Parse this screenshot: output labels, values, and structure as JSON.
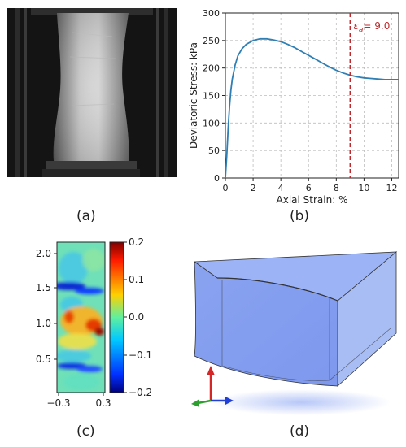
{
  "captions": {
    "a": "(a)",
    "b": "(b)",
    "c": "(c)",
    "d": "(d)"
  },
  "panel_b": {
    "annotation_var": "ε",
    "annotation_sub": "a",
    "annotation_value": "= 9.0",
    "vline_x": 9.0
  },
  "panel_c": {
    "colorbar_ticks": [
      "0.2",
      "0.1",
      "0.0",
      "−0.1",
      "−0.2"
    ]
  },
  "colors": {
    "curve": "#2f7fb5",
    "vline": "#c0282b",
    "grid": "#bdbdbd",
    "block": "#8aa6f2",
    "axis_up": "#d62728",
    "axis_x": "#1f3fd6",
    "axis_y": "#2ca02c"
  },
  "chart_data": [
    {
      "type": "line",
      "xlabel": "Axial Strain: %",
      "ylabel": "Deviatoric Stress: kPa",
      "xlim": [
        0,
        12.5
      ],
      "ylim": [
        0,
        300
      ],
      "xticks": [
        0,
        2,
        4,
        6,
        8,
        10,
        12
      ],
      "yticks": [
        0,
        50,
        100,
        150,
        200,
        250,
        300
      ],
      "grid": true,
      "x": [
        0.0,
        0.1,
        0.2,
        0.3,
        0.4,
        0.5,
        0.7,
        0.9,
        1.2,
        1.5,
        2.0,
        2.5,
        3.0,
        3.5,
        4.0,
        4.5,
        5.0,
        5.5,
        6.0,
        6.5,
        7.0,
        7.5,
        8.0,
        8.5,
        9.0,
        9.5,
        10.0,
        10.5,
        11.0,
        11.5,
        12.0,
        12.5
      ],
      "y": [
        0,
        40,
        90,
        130,
        160,
        180,
        205,
        222,
        235,
        243,
        250,
        253,
        253,
        251,
        248,
        243,
        237,
        230,
        223,
        216,
        209,
        202,
        196,
        191,
        187,
        184,
        182,
        181,
        180,
        179,
        179,
        179
      ]
    },
    {
      "type": "heatmap",
      "xticks": [
        "−0.3",
        "0.3"
      ],
      "yticks": [
        "0.5",
        "1.0",
        "1.5",
        "2.0"
      ],
      "x_range": [
        -0.3,
        0.3
      ],
      "y_range": [
        0.05,
        2.1
      ],
      "colorbar_range": [
        -0.2,
        0.2
      ]
    }
  ]
}
